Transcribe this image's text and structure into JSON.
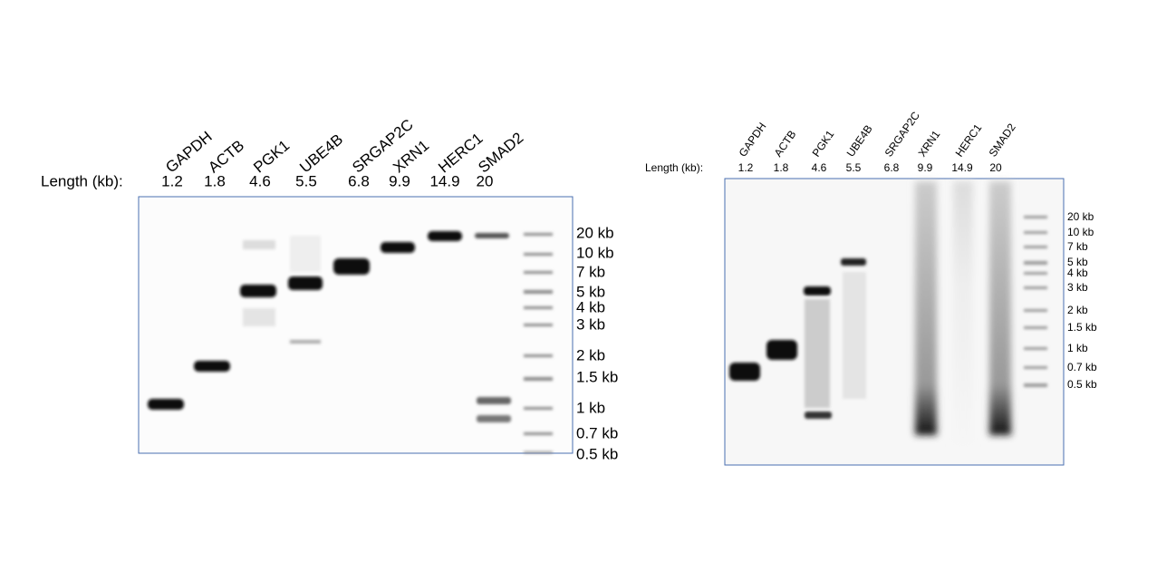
{
  "panels": [
    {
      "length_label": "Length (kb):",
      "lanes": [
        {
          "name": "GAPDH",
          "length": 1.2
        },
        {
          "name": "ACTB",
          "length": 1.8
        },
        {
          "name": "PGK1",
          "length": 4.6
        },
        {
          "name": "UBE4B",
          "length": 5.5
        },
        {
          "name": "SRGAP2C",
          "length": 6.8
        },
        {
          "name": "XRN1",
          "length": 9.9
        },
        {
          "name": "HERC1",
          "length": 14.9
        },
        {
          "name": "SMAD2",
          "length": 20
        }
      ],
      "ladder": [
        "20 kb",
        "10 kb",
        "7 kb",
        "5 kb",
        "4 kb",
        "3 kb",
        "2 kb",
        "1.5 kb",
        "1 kb",
        "0.7 kb",
        "0.5 kb"
      ]
    },
    {
      "length_label": "Length (kb):",
      "lanes": [
        {
          "name": "GAPDH",
          "length": 1.2
        },
        {
          "name": "ACTB",
          "length": 1.8
        },
        {
          "name": "PGK1",
          "length": 4.6
        },
        {
          "name": "UBE4B",
          "length": 5.5
        },
        {
          "name": "SRGAP2C",
          "length": 6.8
        },
        {
          "name": "XRN1",
          "length": 9.9
        },
        {
          "name": "HERC1",
          "length": 14.9
        },
        {
          "name": "SMAD2",
          "length": 20
        }
      ],
      "ladder": [
        "20 kb",
        "10 kb",
        "7 kb",
        "5 kb",
        "4 kb",
        "3 kb",
        "2 kb",
        "1.5 kb",
        "1 kb",
        "0.7 kb",
        "0.5 kb"
      ]
    }
  ]
}
